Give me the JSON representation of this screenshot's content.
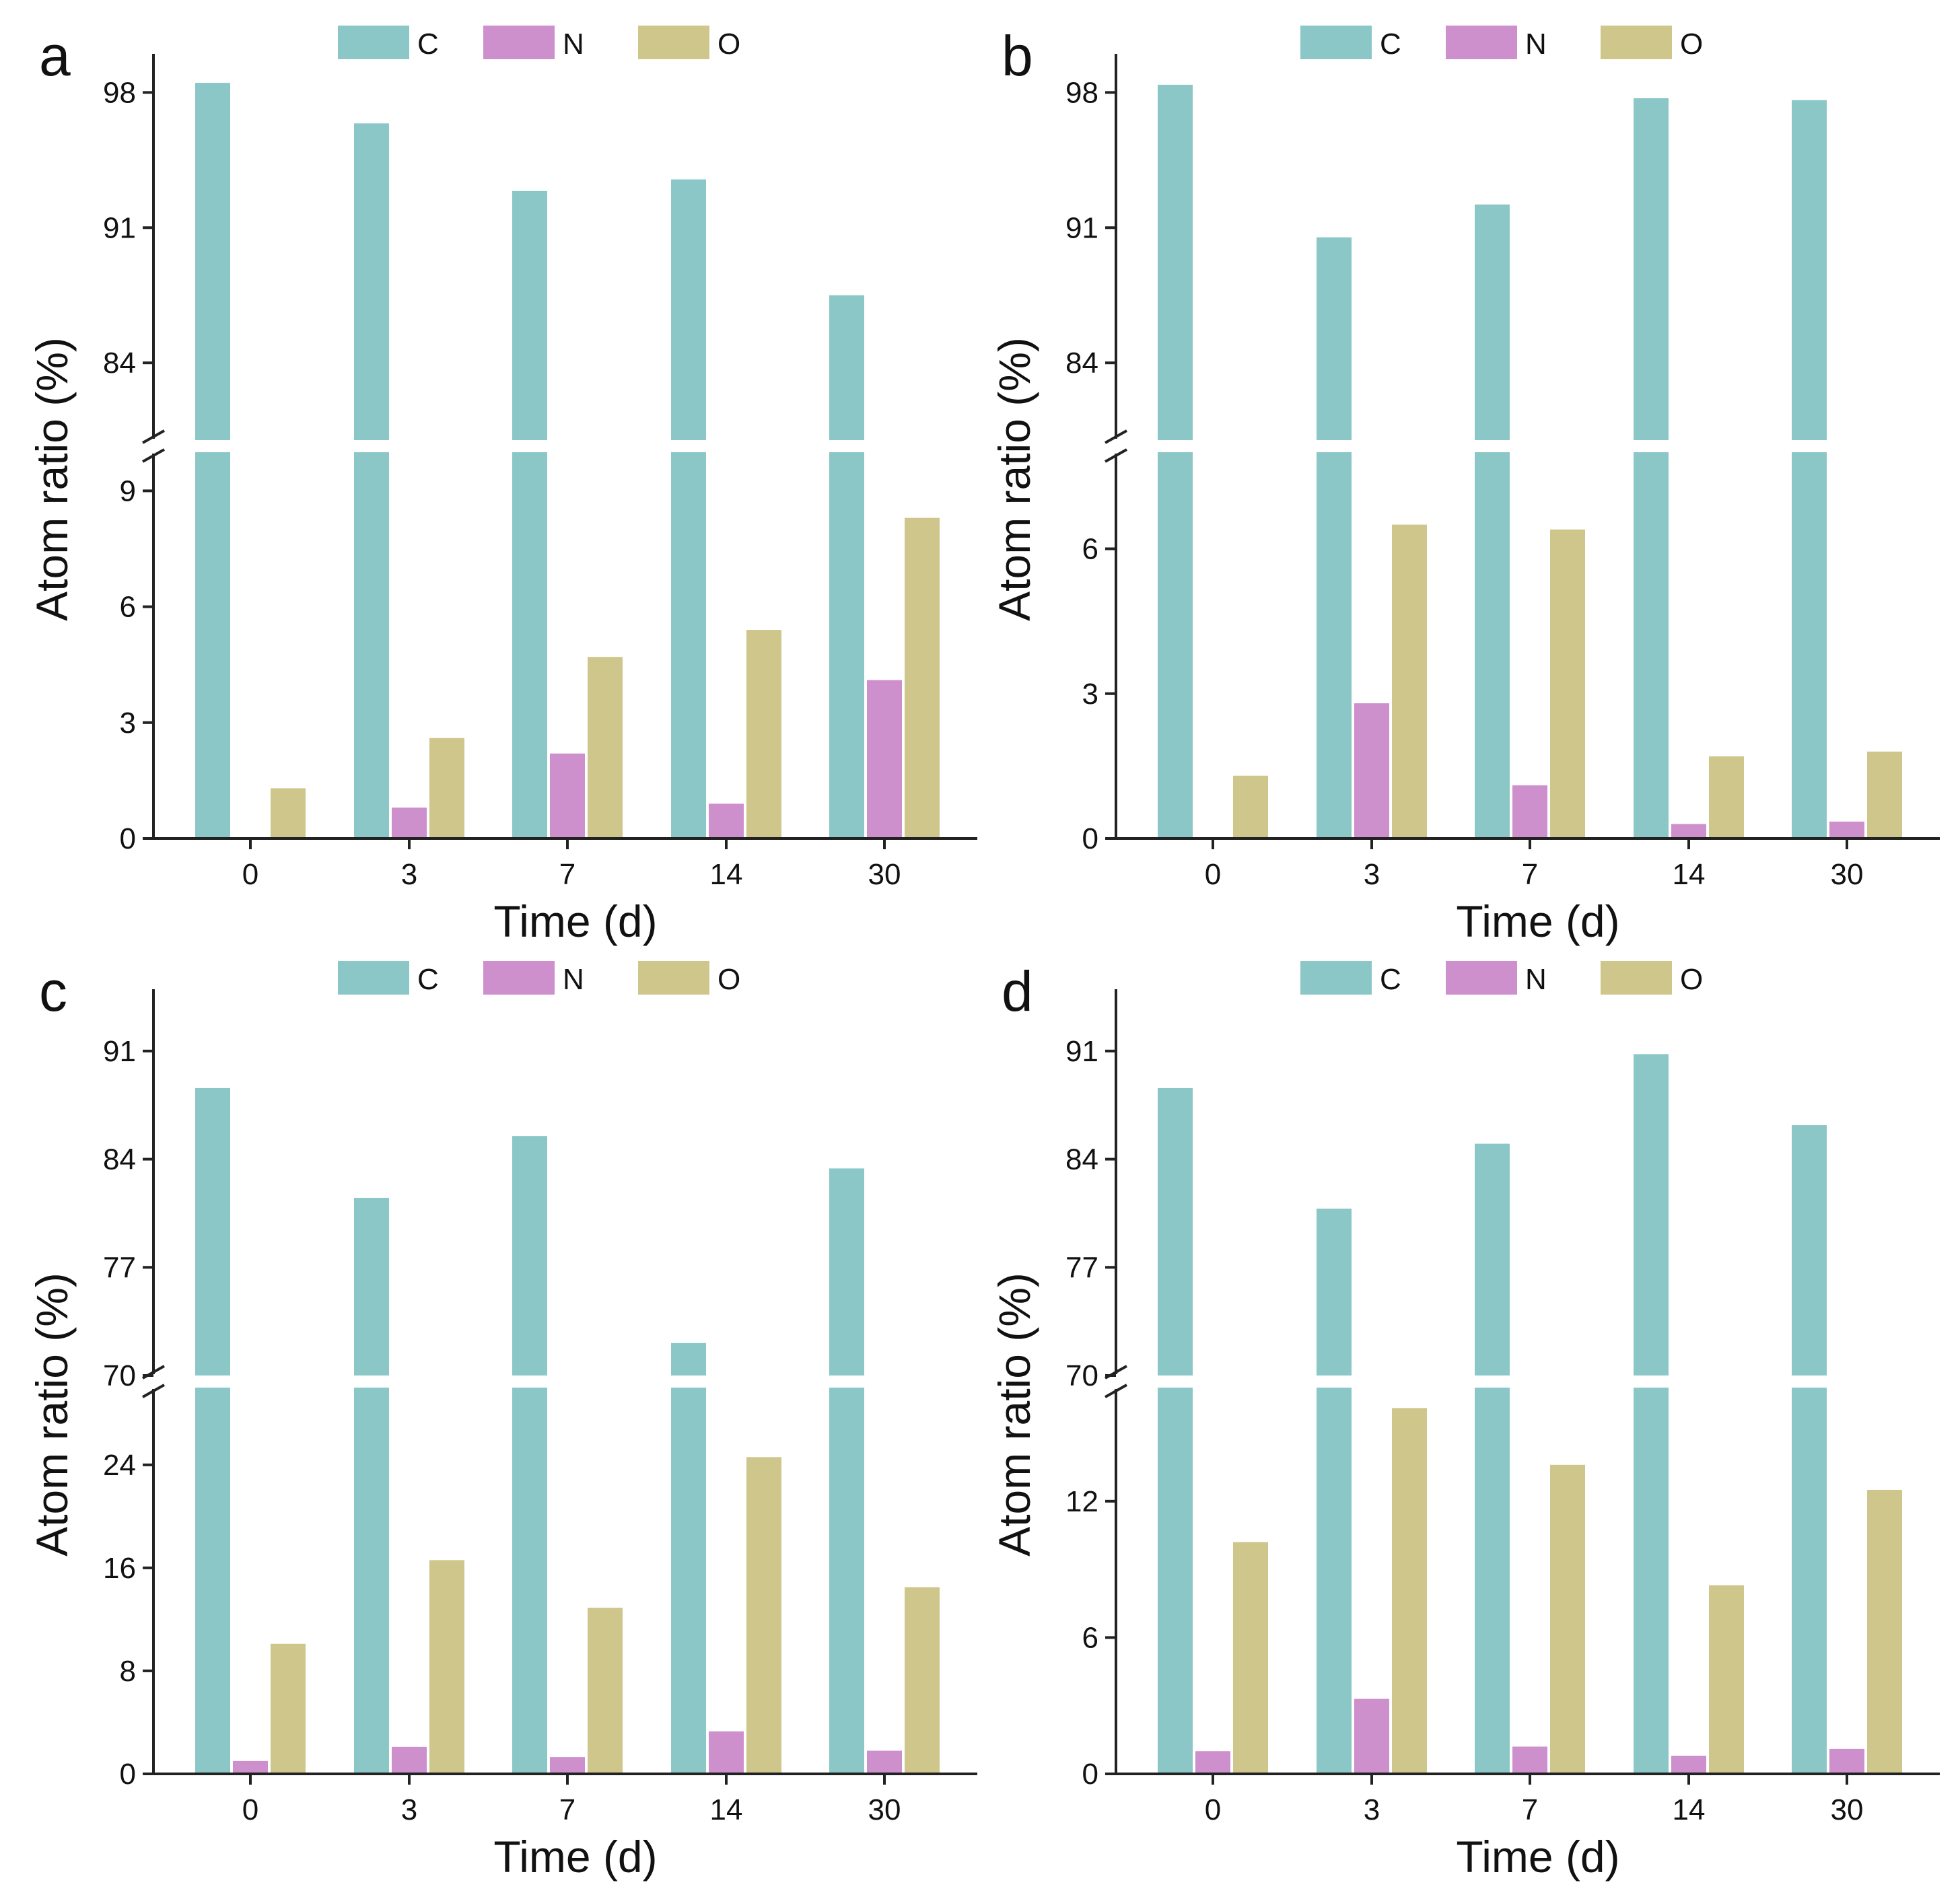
{
  "figure": {
    "ylabel": "Atom ratio (%)",
    "xlabel": "Time (d)",
    "legend": [
      "C",
      "N",
      "O"
    ],
    "colors": {
      "C": "#8cc7c8",
      "N": "#ce8fcd",
      "O": "#cec68a"
    },
    "axis_color": "#222222"
  },
  "chart_data": [
    {
      "panel": "a",
      "type": "bar",
      "title": "",
      "xlabel": "Time (d)",
      "ylabel": "Atom ratio (%)",
      "categories": [
        "0",
        "3",
        "7",
        "14",
        "30"
      ],
      "series": [
        {
          "name": "C",
          "values": [
            98.5,
            96.4,
            92.9,
            93.5,
            87.5
          ]
        },
        {
          "name": "N",
          "values": [
            0,
            0.8,
            2.2,
            0.9,
            4.1
          ]
        },
        {
          "name": "O",
          "values": [
            1.3,
            2.6,
            4.7,
            5.4,
            8.3
          ]
        }
      ],
      "y_break": true,
      "lower_ylim": [
        0,
        10
      ],
      "lower_ticks": [
        "0",
        "3",
        "6",
        "9"
      ],
      "upper_ylim": [
        80,
        100
      ],
      "upper_ticks": [
        "84",
        "91",
        "98"
      ],
      "legend_position": "top"
    },
    {
      "panel": "b",
      "type": "bar",
      "title": "",
      "xlabel": "Time (d)",
      "ylabel": "Atom ratio (%)",
      "categories": [
        "0",
        "3",
        "7",
        "14",
        "30"
      ],
      "series": [
        {
          "name": "C",
          "values": [
            98.4,
            90.5,
            92.2,
            97.7,
            97.6
          ]
        },
        {
          "name": "N",
          "values": [
            0,
            2.8,
            1.1,
            0.3,
            0.35
          ]
        },
        {
          "name": "O",
          "values": [
            1.3,
            6.5,
            6.4,
            1.7,
            1.8
          ]
        }
      ],
      "y_break": true,
      "lower_ylim": [
        0,
        8
      ],
      "lower_ticks": [
        "0",
        "3",
        "6"
      ],
      "upper_ylim": [
        80,
        100
      ],
      "upper_ticks": [
        "84",
        "91",
        "98"
      ],
      "legend_position": "top"
    },
    {
      "panel": "c",
      "type": "bar",
      "title": "",
      "xlabel": "Time (d)",
      "ylabel": "Atom ratio (%)",
      "categories": [
        "0",
        "3",
        "7",
        "14",
        "30"
      ],
      "series": [
        {
          "name": "C",
          "values": [
            88.6,
            81.5,
            85.5,
            72.1,
            83.4
          ]
        },
        {
          "name": "N",
          "values": [
            1.0,
            2.1,
            1.3,
            3.3,
            1.8
          ]
        },
        {
          "name": "O",
          "values": [
            10.1,
            16.6,
            12.9,
            24.6,
            14.5
          ]
        }
      ],
      "y_break": true,
      "lower_ylim": [
        0,
        30
      ],
      "lower_ticks": [
        "0",
        "8",
        "16",
        "24"
      ],
      "upper_ylim": [
        70,
        95
      ],
      "upper_ticks": [
        "70",
        "77",
        "84",
        "91"
      ],
      "legend_position": "top"
    },
    {
      "panel": "d",
      "type": "bar",
      "title": "",
      "xlabel": "Time (d)",
      "ylabel": "Atom ratio (%)",
      "categories": [
        "0",
        "3",
        "7",
        "14",
        "30"
      ],
      "series": [
        {
          "name": "C",
          "values": [
            88.6,
            80.8,
            85.0,
            90.8,
            86.2
          ]
        },
        {
          "name": "N",
          "values": [
            1.0,
            3.3,
            1.2,
            0.8,
            1.1
          ]
        },
        {
          "name": "O",
          "values": [
            10.2,
            16.1,
            13.6,
            8.3,
            12.5
          ]
        }
      ],
      "y_break": true,
      "lower_ylim": [
        0,
        17
      ],
      "lower_ticks": [
        "0",
        "6",
        "12"
      ],
      "upper_ylim": [
        70,
        95
      ],
      "upper_ticks": [
        "70",
        "77",
        "84",
        "91"
      ],
      "legend_position": "top"
    }
  ]
}
